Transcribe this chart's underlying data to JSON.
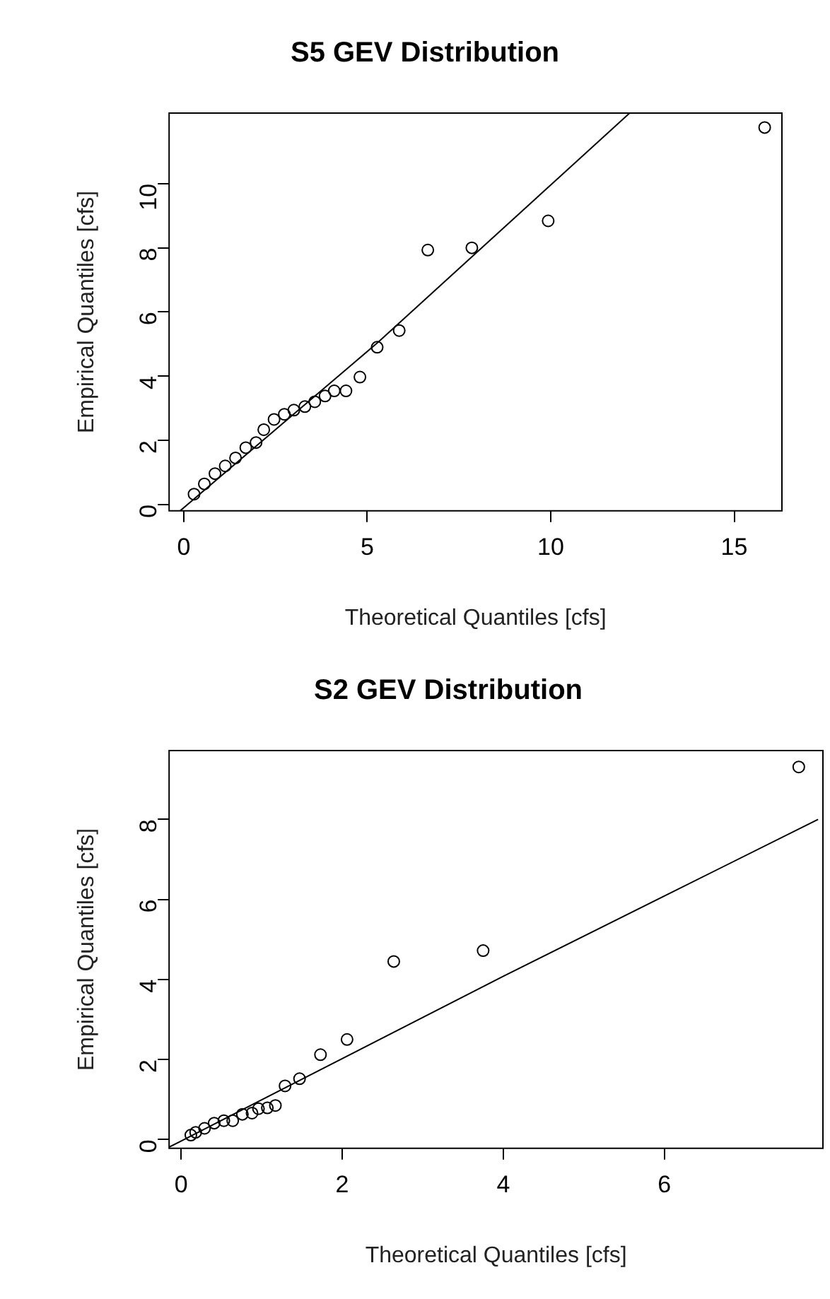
{
  "chart_data": [
    {
      "type": "scatter",
      "title": "S5 GEV Distribution",
      "xlabel": "Theoretical Quantiles [cfs]",
      "ylabel": "Empirical Quantiles [cfs]",
      "xlim": [
        -0.4,
        16.3
      ],
      "ylim": [
        -0.2,
        12.2
      ],
      "xticks": [
        0,
        5,
        10,
        15
      ],
      "yticks": [
        0,
        2,
        4,
        6,
        8,
        10
      ],
      "grid": false,
      "legend": false,
      "marker": "circle",
      "series": [
        {
          "type": "scatter",
          "color": "#000000",
          "x": [
            0.28,
            0.56,
            0.85,
            1.13,
            1.41,
            1.69,
            1.97,
            2.18,
            2.46,
            2.74,
            3.0,
            3.3,
            3.57,
            3.85,
            4.1,
            4.42,
            4.8,
            5.27,
            5.87,
            6.65,
            7.85,
            9.93,
            15.83
          ],
          "values": [
            0.32,
            0.64,
            0.96,
            1.2,
            1.45,
            1.77,
            1.93,
            2.33,
            2.65,
            2.81,
            2.94,
            3.05,
            3.2,
            3.38,
            3.54,
            3.54,
            3.97,
            4.9,
            5.42,
            7.93,
            8.0,
            8.84,
            11.75
          ]
        },
        {
          "type": "line",
          "color": "#000000",
          "marker": "none",
          "x": [
            -0.1,
            5.3,
            12.15
          ],
          "values": [
            -0.2,
            5.06,
            12.2
          ]
        }
      ]
    },
    {
      "type": "scatter",
      "title": "S2 GEV Distribution",
      "xlabel": "Theoretical Quantiles [cfs]",
      "ylabel": "Empirical Quantiles [cfs]",
      "xlim": [
        -0.15,
        7.97
      ],
      "ylim": [
        -0.22,
        9.72
      ],
      "xticks": [
        0,
        2,
        4,
        6
      ],
      "yticks": [
        0,
        2,
        4,
        6,
        8
      ],
      "grid": false,
      "legend": false,
      "marker": "circle",
      "series": [
        {
          "type": "scatter",
          "color": "#000000",
          "x": [
            0.12,
            0.18,
            0.29,
            0.41,
            0.53,
            0.64,
            0.76,
            0.88,
            0.96,
            1.07,
            1.17,
            1.29,
            1.47,
            1.73,
            2.06,
            2.64,
            3.75,
            7.67
          ],
          "values": [
            0.11,
            0.18,
            0.28,
            0.41,
            0.47,
            0.47,
            0.63,
            0.66,
            0.77,
            0.79,
            0.85,
            1.34,
            1.52,
            2.12,
            2.5,
            4.45,
            4.72,
            9.31
          ]
        },
        {
          "type": "line",
          "color": "#000000",
          "marker": "none",
          "x": [
            -0.15,
            4,
            7.91
          ],
          "values": [
            -0.19,
            4.08,
            8.0
          ]
        }
      ]
    }
  ]
}
